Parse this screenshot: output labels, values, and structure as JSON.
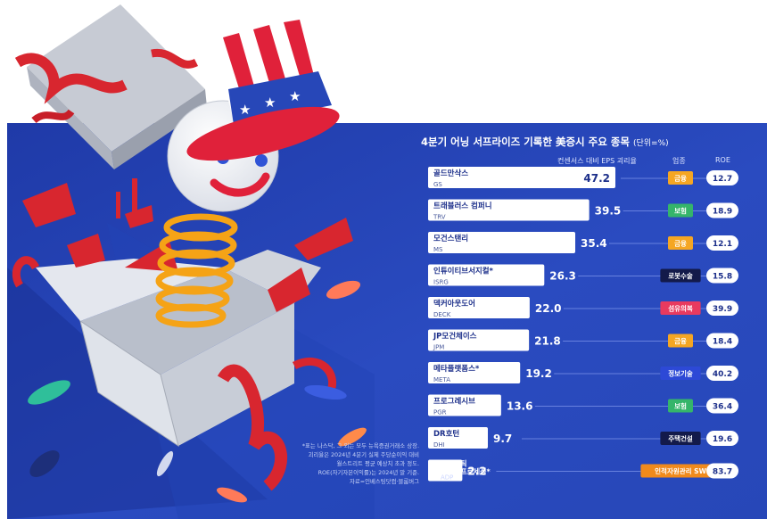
{
  "chart_data": {
    "type": "bar",
    "title": "4분기 어닝 서프라이즈 기록한 美증시 주요 종목",
    "unit_note": "(단위=%)",
    "columns": {
      "surprise": "컨센서스 대비 EPS 괴리율",
      "sector": "업종",
      "roe": "ROE"
    },
    "rows": [
      {
        "name": "골드만삭스",
        "ticker": "GS",
        "surprise": 47.2,
        "sector": "금융",
        "roe": "12.7",
        "sector_color": "#f5a623",
        "star": false
      },
      {
        "name": "트래블러스 컴퍼니",
        "ticker": "TRV",
        "surprise": 39.5,
        "sector": "보험",
        "roe": "18.9",
        "sector_color": "#35b56a",
        "star": false
      },
      {
        "name": "모건스탠리",
        "ticker": "MS",
        "surprise": 35.4,
        "sector": "금융",
        "roe": "12.1",
        "sector_color": "#f5a623",
        "star": false
      },
      {
        "name": "인튜이티브서지컬",
        "ticker": "ISRG",
        "surprise": 26.3,
        "sector": "로봇수술",
        "roe": "15.8",
        "sector_color": "#131a4a",
        "star": true
      },
      {
        "name": "덱커아웃도어",
        "ticker": "DECK",
        "surprise": 22.0,
        "sector": "섬유의복",
        "roe": "39.9",
        "sector_color": "#e83a5f",
        "star": false
      },
      {
        "name": "JP모건체이스",
        "ticker": "JPM",
        "surprise": 21.8,
        "sector": "금융",
        "roe": "18.4",
        "sector_color": "#f5a623",
        "star": false
      },
      {
        "name": "메타플랫폼스",
        "ticker": "META",
        "surprise": 19.2,
        "sector": "정보기술",
        "roe": "40.2",
        "sector_color": "#2d49d6",
        "star": true
      },
      {
        "name": "프로그레시브",
        "ticker": "PGR",
        "surprise": 13.6,
        "sector": "보험",
        "roe": "36.4",
        "sector_color": "#35b56a",
        "star": false
      },
      {
        "name": "DR호턴",
        "ticker": "DHI",
        "surprise": 9.7,
        "sector": "주택건설",
        "roe": "19.6",
        "sector_color": "#131a4a",
        "star": false
      },
      {
        "name": "오토매틱 데이터프로세싱",
        "ticker": "ADP",
        "surprise": 2.2,
        "sector": "인적자원관리 SW",
        "roe": "83.7",
        "sector_color": "#f08a1c",
        "star": true
      }
    ],
    "xlim": [
      0,
      47.2
    ]
  },
  "footnote": [
    "*표는 나스닥, 그 외는 모두 뉴욕증권거래소 상장.",
    "괴리율은 2024년 4분기 실제 주당순이익 대비",
    "월스트리트 평균 예상치 초과 정도.",
    "ROE(자기자본이익률)는 2024년 말 기준.",
    "자료=인베스팅닷컴·블룸버그"
  ],
  "colors": {
    "panel": "#2747b8",
    "panel_dark": "#172e8f",
    "row_line": "#7d95ea",
    "value_text": "#ffffff",
    "bar_fill": "#ffffff"
  }
}
